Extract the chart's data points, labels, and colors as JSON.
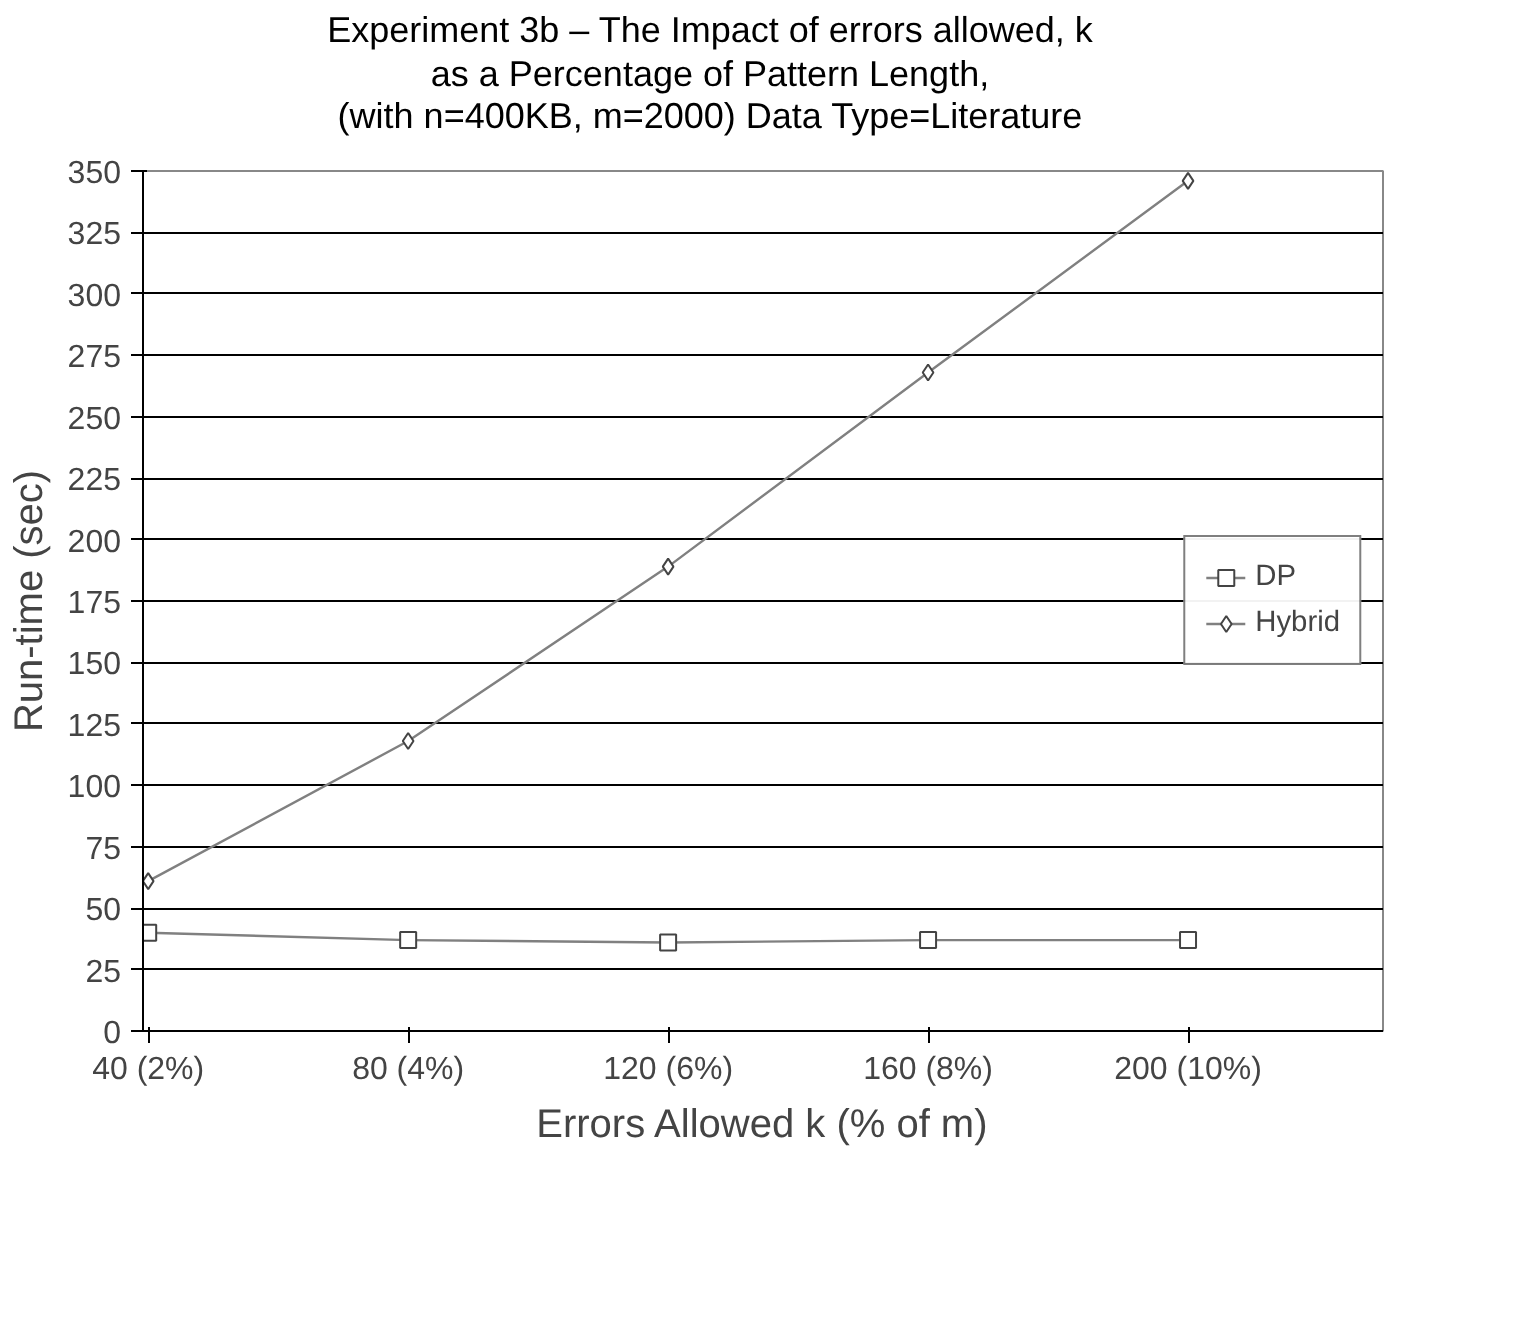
{
  "chart_data": {
    "type": "line",
    "title": "Experiment 3b – The Impact of errors allowed, k\nas a Percentage of Pattern Length,\n(with n=400KB, m=2000) Data Type=Literature",
    "xlabel": "Errors Allowed k (% of m)",
    "ylabel": "Run-time (sec)",
    "categories": [
      "40 (2%)",
      "80 (4%)",
      "120 (6%)",
      "160 (8%)",
      "200 (10%)"
    ],
    "series": [
      {
        "name": "DP",
        "color": "#808080",
        "marker": "square",
        "values": [
          40,
          37,
          36,
          37,
          37
        ]
      },
      {
        "name": "Hybrid",
        "color": "#808080",
        "marker": "diamond",
        "values": [
          61,
          118,
          189,
          268,
          346
        ]
      }
    ],
    "ylim": [
      0,
      350
    ],
    "yticks": [
      0,
      25,
      50,
      75,
      100,
      125,
      150,
      175,
      200,
      225,
      250,
      275,
      300,
      325,
      350
    ],
    "grid": "y",
    "legend": "right",
    "line_style": "solid"
  }
}
